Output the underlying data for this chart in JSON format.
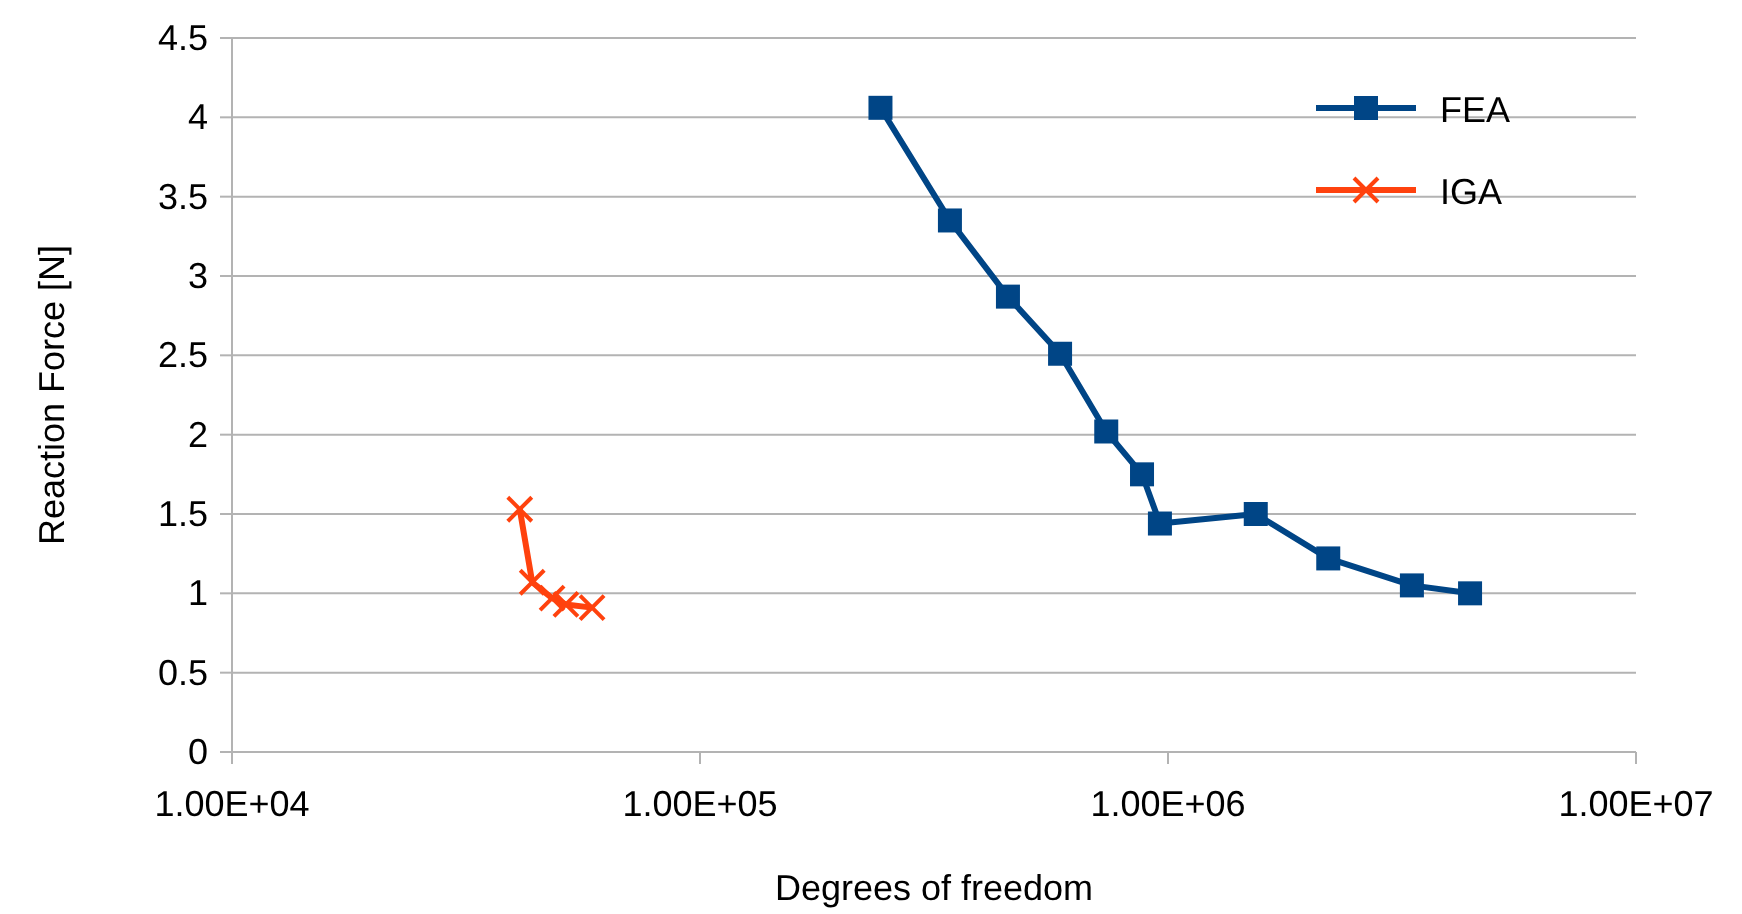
{
  "chart_data": {
    "type": "line",
    "xlabel": "Degrees of freedom",
    "ylabel": "Reaction Force [N]",
    "log": "x",
    "grid": "y",
    "legend": "top right",
    "line_style": "solid",
    "xlim": [
      10000,
      10000000
    ],
    "xticks": [
      {
        "value": 10000,
        "label": "1.00E+04"
      },
      {
        "value": 100000,
        "label": "1.00E+05"
      },
      {
        "value": 1000000,
        "label": "1.00E+06"
      },
      {
        "value": 10000000,
        "label": "1.00E+07"
      }
    ],
    "ylim": [
      0,
      4.5
    ],
    "yticks": [
      0,
      0.5,
      1,
      1.5,
      2,
      2.5,
      3,
      3.5,
      4,
      4.5
    ],
    "series": [
      {
        "name": "FEA",
        "color": "#004586",
        "marker": "square",
        "x": [
          243000,
          342000,
          455000,
          588000,
          738000,
          880000,
          961000,
          1540000,
          2200000,
          3320000,
          4420000
        ],
        "values": [
          4.06,
          3.35,
          2.87,
          2.51,
          2.02,
          1.75,
          1.44,
          1.5,
          1.22,
          1.05,
          1.0
        ]
      },
      {
        "name": "IGA",
        "color": "#ff420e",
        "marker": "cross",
        "x": [
          41200,
          43800,
          48300,
          51700,
          58800
        ],
        "values": [
          1.53,
          1.07,
          0.97,
          0.93,
          0.91
        ]
      }
    ]
  }
}
